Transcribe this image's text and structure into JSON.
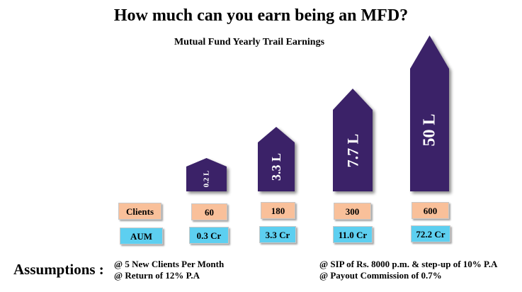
{
  "title": "How much can you earn being an MFD?",
  "chart_data": {
    "type": "bar",
    "title": "How much can you earn being an MFD?",
    "subtitle": "Mutual Fund Yearly Trail Earnings",
    "categories": [
      "60",
      "180",
      "300",
      "600"
    ],
    "values": [
      0.2,
      3.3,
      7.7,
      50
    ],
    "value_labels": [
      "0.2 L",
      "3.3 L",
      "7.7 L",
      "50 L"
    ],
    "unit": "L",
    "row_labels": {
      "clients": "Clients",
      "aum": "AUM"
    },
    "clients": [
      "60",
      "180",
      "300",
      "600"
    ],
    "aum": [
      "0.3 Cr",
      "3.3 Cr",
      "11.0 Cr",
      "72.2 Cr"
    ]
  },
  "assumptions": {
    "label": "Assumptions :",
    "items": [
      "@ 5 New Clients Per Month",
      "@ Return of 12% P.A",
      "@ SIP of Rs. 8000 p.m. & step-up of 10% P.A",
      "@ Payout Commission of 0.7%"
    ]
  },
  "colors": {
    "arrow_fill": "#3a2268",
    "clients_box": "#f9c09a",
    "aum_box": "#5dcff0"
  }
}
